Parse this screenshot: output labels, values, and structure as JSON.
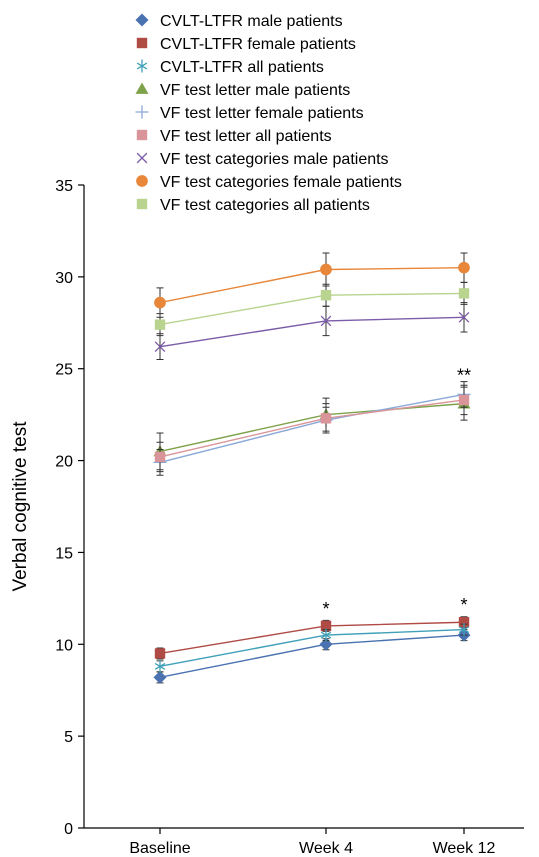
{
  "chart_data": {
    "type": "line",
    "title": "",
    "xlabel": "",
    "ylabel": "Verbal cognitive test",
    "categories": [
      "Baseline",
      "Week 4",
      "Week 12"
    ],
    "ylim": [
      0,
      35
    ],
    "yticks": [
      0,
      5,
      10,
      15,
      20,
      25,
      30,
      35
    ],
    "grid": false,
    "legend_position": "top",
    "series": [
      {
        "name": "CVLT-LTFR male patients",
        "marker": "diamond",
        "color": "#4a72b0",
        "values": [
          8.2,
          10.0,
          10.5
        ],
        "err": [
          0.3,
          0.3,
          0.3
        ]
      },
      {
        "name": "CVLT-LTFR female patients",
        "marker": "square",
        "color": "#b04a45",
        "values": [
          9.5,
          11.0,
          11.2
        ],
        "err": [
          0.3,
          0.3,
          0.3
        ]
      },
      {
        "name": "CVLT-LTFR all patients",
        "marker": "asterisk",
        "color": "#3fa0b8",
        "values": [
          8.8,
          10.5,
          10.8
        ],
        "err": [
          0.3,
          0.3,
          0.3
        ]
      },
      {
        "name": "VF test letter male patients",
        "marker": "triangle",
        "color": "#7da24a",
        "values": [
          20.5,
          22.5,
          23.1
        ],
        "err": [
          1.0,
          0.9,
          0.9
        ]
      },
      {
        "name": "VF test letter female patients",
        "marker": "plus",
        "color": "#8aa8d8",
        "values": [
          19.9,
          22.2,
          23.6
        ],
        "err": [
          0.7,
          0.7,
          0.7
        ]
      },
      {
        "name": "VF test letter all patients",
        "marker": "square",
        "color": "#d9959a",
        "values": [
          20.2,
          22.3,
          23.3
        ],
        "err": [
          0.8,
          0.8,
          0.8
        ]
      },
      {
        "name": "VF test categories male patients",
        "marker": "x",
        "color": "#7b5ca8",
        "values": [
          26.2,
          27.6,
          27.8
        ],
        "err": [
          0.7,
          0.8,
          0.8
        ]
      },
      {
        "name": "VF test categories female patients",
        "marker": "circle",
        "color": "#e8873a",
        "values": [
          28.6,
          30.4,
          30.5
        ],
        "err": [
          0.8,
          0.9,
          0.8
        ]
      },
      {
        "name": "VF test categories all patients",
        "marker": "square",
        "color": "#b9d48f",
        "values": [
          27.4,
          29.0,
          29.1
        ],
        "err": [
          0.6,
          0.6,
          0.6
        ]
      }
    ],
    "annotations": [
      {
        "text": "*",
        "category": "Week 4",
        "y": 11.6
      },
      {
        "text": "*",
        "category": "Week 12",
        "y": 11.8
      },
      {
        "text": "**",
        "category": "Week 12",
        "y": 24.3
      }
    ]
  }
}
